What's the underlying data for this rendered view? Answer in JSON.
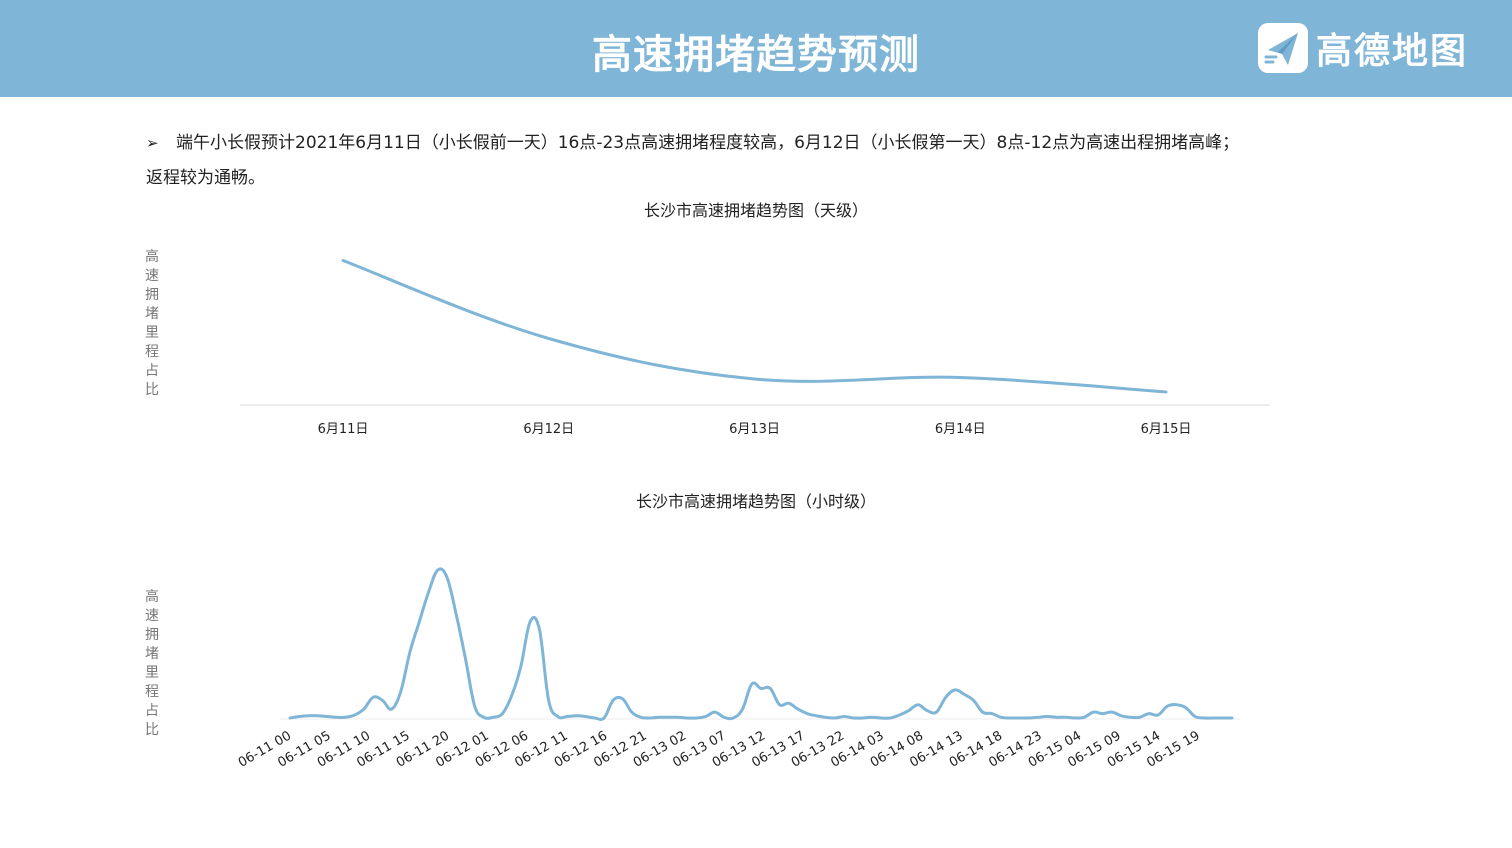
{
  "header": {
    "title": "高速拥堵趋势预测",
    "brand_name": "高德地图",
    "brand_icon": "paper-plane-logo-icon",
    "background_color": "#7fb5d6"
  },
  "bullet": {
    "marker": "➢",
    "line1": "端午小长假预计2021年6月11日（小长假前一天）16点-23点高速拥堵程度较高，6月12日（小长假第一天）8点-12点为高速出程拥堵高峰；",
    "line2": "返程较为通畅。"
  },
  "chart_data": [
    {
      "type": "line",
      "title": "长沙市高速拥堵趋势图（天级）",
      "ylabel": "高速拥堵里程占比",
      "xlabel": "",
      "categories": [
        "6月11日",
        "6月12日",
        "6月13日",
        "6月14日",
        "6月15日"
      ],
      "values": [
        100,
        46,
        18,
        19,
        9
      ],
      "ylim": [
        0,
        110
      ],
      "line_color": "#7fb5d6",
      "grid": false,
      "smooth": true
    },
    {
      "type": "line",
      "title": "长沙市高速拥堵趋势图（小时级）",
      "ylabel": "高速拥堵里程占比",
      "xlabel": "",
      "x_tick_labels": [
        "06-11 00",
        "06-11 05",
        "06-11 10",
        "06-11 15",
        "06-11 20",
        "06-12 01",
        "06-12 06",
        "06-12 11",
        "06-12 16",
        "06-12 21",
        "06-13 02",
        "06-13 07",
        "06-13 12",
        "06-13 17",
        "06-13 22",
        "06-14 03",
        "06-14 08",
        "06-14 13",
        "06-14 18",
        "06-14 23",
        "06-15 04",
        "06-15 09",
        "06-15 14",
        "06-15 19"
      ],
      "values": [
        0,
        1,
        1.5,
        1.5,
        1,
        0.5,
        0.5,
        2,
        6,
        14,
        12,
        6,
        18,
        45,
        65,
        85,
        100,
        95,
        70,
        40,
        8,
        0.5,
        0.5,
        3,
        15,
        35,
        65,
        60,
        12,
        1,
        1,
        1.5,
        1,
        0,
        0,
        12,
        13,
        4,
        0.5,
        0,
        0.5,
        0.5,
        0.5,
        0,
        0,
        1,
        4,
        0.5,
        0,
        6,
        23,
        20,
        20,
        9,
        10,
        6,
        3,
        1.5,
        0.5,
        0,
        1,
        0,
        0,
        0.5,
        0,
        0,
        2,
        5,
        9,
        5,
        4,
        14,
        19,
        16,
        12,
        4,
        3,
        0.5,
        0,
        0,
        0,
        0.5,
        1,
        0.5,
        0.5,
        0,
        0.5,
        4,
        3,
        4,
        1.5,
        0.5,
        0.5,
        3,
        2,
        8,
        9,
        7,
        1,
        0,
        0,
        0,
        0
      ],
      "ylim": [
        0,
        105
      ],
      "line_color": "#7fb5d6",
      "grid": false,
      "smooth": true
    }
  ]
}
